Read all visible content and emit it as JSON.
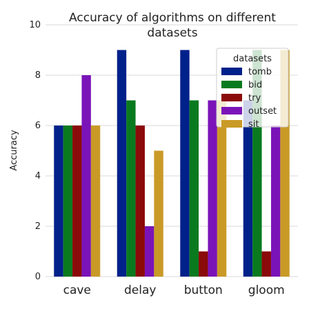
{
  "chart_data": {
    "type": "bar",
    "title_lines": [
      "Accuracy of algorithms on different",
      "datasets"
    ],
    "xlabel": "",
    "ylabel": "Accuracy",
    "ylim": [
      0,
      10
    ],
    "yticks": [
      0,
      2,
      4,
      6,
      8,
      10
    ],
    "grid": true,
    "categories": [
      "cave",
      "delay",
      "button",
      "gloom"
    ],
    "legend": {
      "title": "datasets",
      "placement": "top-right"
    },
    "series": [
      {
        "name": "tomb",
        "color": "#00218a",
        "values": [
          6,
          9,
          9,
          7
        ]
      },
      {
        "name": "bid",
        "color": "#0a7a1f",
        "values": [
          6,
          7,
          7,
          9
        ]
      },
      {
        "name": "try",
        "color": "#8b0a0a",
        "values": [
          6,
          6,
          1,
          1
        ]
      },
      {
        "name": "outset",
        "color": "#7a14b8",
        "values": [
          8,
          2,
          7,
          6
        ]
      },
      {
        "name": "sit",
        "color": "#c99a26",
        "values": [
          6,
          5,
          7,
          9
        ]
      }
    ]
  }
}
